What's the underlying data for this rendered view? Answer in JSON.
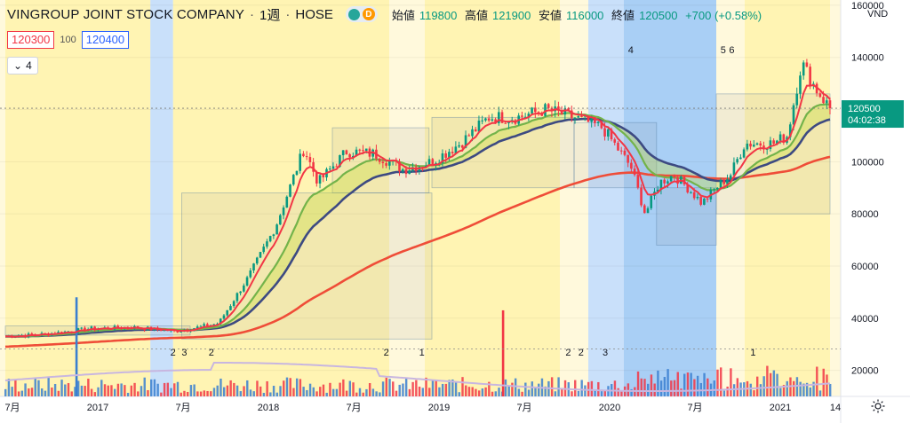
{
  "header": {
    "title": "VINGROUP JOINT STOCK COMPANY",
    "separator": "·",
    "interval": "1週",
    "exchange": "HOSE",
    "mode_badge": "D",
    "ohlc": {
      "open_label": "始値",
      "open": "119800",
      "high_label": "高値",
      "high": "121900",
      "low_label": "安値",
      "low": "116000",
      "close_label": "終値",
      "close": "120500",
      "change": "+700 (+0.58%)"
    }
  },
  "quote": {
    "bid": "120300",
    "spread": "100",
    "ask": "120400"
  },
  "indicators_toggle": {
    "count": "4"
  },
  "colors": {
    "yellow_band": "#fff4b3",
    "light_yellow_band": "#fff9dc",
    "blue_band": "#c9e0fa",
    "mid_blue_band": "#a9cff5",
    "up": "#089981",
    "down": "#f23645",
    "ema_fast": "#f23645",
    "ema_mid": "#73b34a",
    "ema_slow": "#3d4a82",
    "ema_long": "#ef4d38",
    "volume_blue": "#3a7fd0",
    "volume_red": "#f23645",
    "volume_ma": "#c8b6e0"
  },
  "chart_data": {
    "type": "candlestick",
    "currency": "VND",
    "y_axis_ticks": [
      20000,
      40000,
      60000,
      80000,
      100000,
      120000,
      140000,
      160000
    ],
    "y_axis_ticks_partial": [
      "160000"
    ],
    "ylim": [
      10000,
      162000
    ],
    "x_axis_ticks": [
      "7月",
      "2017",
      "7月",
      "2018",
      "7月",
      "2019",
      "7月",
      "2020",
      "7月",
      "2021",
      "14"
    ],
    "last_price": "120500",
    "countdown": "04:02:38",
    "ema_fast_last": 122000,
    "ema_mid_last": 118000,
    "ema_slow_last": 113500,
    "ema_long_last": 94000,
    "price_path": [
      [
        "2016-06",
        33000
      ],
      [
        "2016-09",
        34000
      ],
      [
        "2016-12",
        36000
      ],
      [
        "2017-03",
        36500
      ],
      [
        "2017-06",
        35000
      ],
      [
        "2017-09",
        38000
      ],
      [
        "2017-11",
        55000
      ],
      [
        "2018-01",
        75000
      ],
      [
        "2018-03",
        105000
      ],
      [
        "2018-04",
        92000
      ],
      [
        "2018-06",
        104000
      ],
      [
        "2018-08",
        103000
      ],
      [
        "2018-10",
        97000
      ],
      [
        "2018-12",
        100000
      ],
      [
        "2019-02",
        107000
      ],
      [
        "2019-04",
        117000
      ],
      [
        "2019-06",
        117000
      ],
      [
        "2019-08",
        120000
      ],
      [
        "2019-10",
        117000
      ],
      [
        "2019-12",
        113000
      ],
      [
        "2020-02",
        98000
      ],
      [
        "2020-03",
        80000
      ],
      [
        "2020-04",
        92000
      ],
      [
        "2020-05",
        95000
      ],
      [
        "2020-06",
        90000
      ],
      [
        "2020-07",
        84000
      ],
      [
        "2020-08",
        90000
      ],
      [
        "2020-09",
        95000
      ],
      [
        "2020-10",
        107000
      ],
      [
        "2020-11",
        107000
      ],
      [
        "2020-12",
        107000
      ],
      [
        "2021-01",
        110000
      ],
      [
        "2021-02",
        138000
      ],
      [
        "2021-03",
        128000
      ],
      [
        "2021-04",
        120500
      ]
    ],
    "annotations": [
      "2",
      "3",
      "2",
      "2",
      "1",
      "2",
      "2",
      "3",
      "4",
      "5",
      "6",
      "1"
    ],
    "volume_spikes": [
      [
        "2016-11",
        48000
      ],
      [
        "2019-05",
        43000
      ]
    ]
  }
}
